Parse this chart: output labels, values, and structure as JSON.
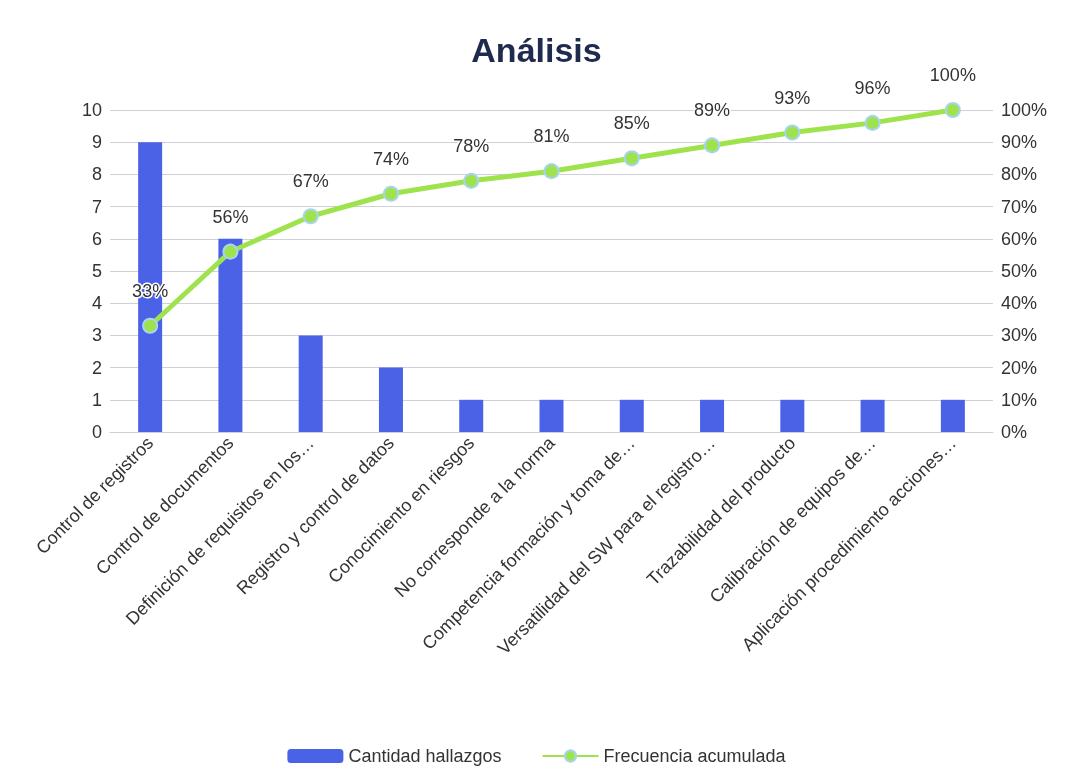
{
  "chart_data": {
    "type": "bar",
    "title": "Análisis",
    "categories": [
      "Control de registros",
      "Control de documentos",
      "Definición de requisitos en los…",
      "Registro y control de datos",
      "Conocimiento en riesgos",
      "No corresponde a la norma",
      "Competencia formación y toma de…",
      "Versatilidad del SW para el registro…",
      "Trazabilidad del producto",
      "Calibración de equipos de…",
      "Aplicación procedimiento acciones…"
    ],
    "series": [
      {
        "name": "Cantidad hallazgos",
        "color": "#4a62e6",
        "values": [
          9,
          6,
          3,
          2,
          1,
          1,
          1,
          1,
          1,
          1,
          1
        ]
      },
      {
        "name": "Frecuencia acumulada",
        "type": "line",
        "axis": "y2",
        "color": "#9ee34c",
        "marker": "circle",
        "values": [
          33,
          56,
          67,
          74,
          78,
          81,
          85,
          89,
          93,
          96,
          100
        ],
        "value_labels": [
          "33%",
          "56%",
          "67%",
          "74%",
          "78%",
          "81%",
          "85%",
          "89%",
          "93%",
          "96%",
          "100%"
        ]
      }
    ],
    "ylim": [
      0,
      10
    ],
    "yticks": [
      0,
      1,
      2,
      3,
      4,
      5,
      6,
      7,
      8,
      9,
      10
    ],
    "y2lim": [
      0,
      100
    ],
    "y2ticks": [
      {
        "value": 0,
        "label": "0%"
      },
      {
        "value": 10,
        "label": "10%"
      },
      {
        "value": 20,
        "label": "20%"
      },
      {
        "value": 30,
        "label": "30%"
      },
      {
        "value": 40,
        "label": "40%"
      },
      {
        "value": 50,
        "label": "50%"
      },
      {
        "value": 60,
        "label": "60%"
      },
      {
        "value": 70,
        "label": "70%"
      },
      {
        "value": 80,
        "label": "80%"
      },
      {
        "value": 90,
        "label": "90%"
      },
      {
        "value": 100,
        "label": "100%"
      }
    ],
    "grid": "y",
    "legend": "bottom"
  }
}
